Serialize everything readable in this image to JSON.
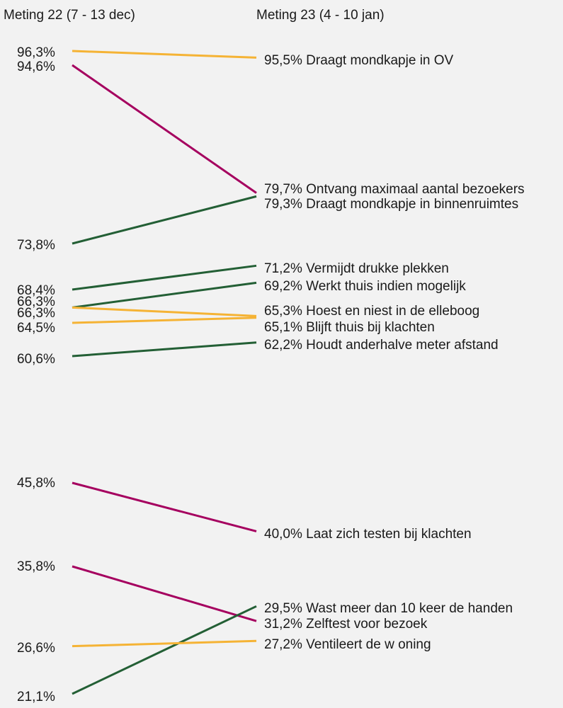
{
  "chart_data": {
    "type": "line",
    "chart_style": "slope",
    "x": [
      "Meting 22 (7 - 13 dec)",
      "Meting 23 (4 - 10 jan)"
    ],
    "series": [
      {
        "name": "Draagt mondkapje in OV",
        "values": [
          96.3,
          95.5
        ],
        "color": "#f5b335",
        "label_left": "96,3%",
        "label_right": "95,5% Draagt mondkapje in OV"
      },
      {
        "name": "Ontvang maximaal aantal bezoekers",
        "values": [
          94.6,
          79.7
        ],
        "color": "#a5005f",
        "label_left": "94,6%",
        "label_right": "79,7% Ontvang maximaal aantal bezoekers"
      },
      {
        "name": "Draagt mondkapje in binnenruimtes",
        "values": [
          73.8,
          79.3
        ],
        "color": "#235f35",
        "label_left": "73,8%",
        "label_right": "79,3% Draagt mondkapje in binnenruimtes"
      },
      {
        "name": "Vermijdt drukke plekken",
        "values": [
          68.4,
          71.2
        ],
        "color": "#235f35",
        "label_left": "68,4%",
        "label_right": "71,2% Vermijdt drukke plekken"
      },
      {
        "name": "Werkt thuis indien mogelijk",
        "values": [
          66.3,
          69.2
        ],
        "color": "#235f35",
        "label_left": "66,3%",
        "label_right": "69,2% Werkt thuis indien mogelijk"
      },
      {
        "name": "Hoest en niest in de elleboog",
        "values": [
          66.3,
          65.3
        ],
        "color": "#f5b335",
        "label_left": "66,3%",
        "label_right": "65,3% Hoest en niest in de elleboog"
      },
      {
        "name": "Blijft thuis bij klachten",
        "values": [
          64.5,
          65.1
        ],
        "color": "#f5b335",
        "label_left": "64,5%",
        "label_right": "65,1% Blijft thuis bij klachten"
      },
      {
        "name": "Houdt anderhalve meter afstand",
        "values": [
          60.6,
          62.2
        ],
        "color": "#235f35",
        "label_left": "60,6%",
        "label_right": "62,2% Houdt anderhalve meter afstand"
      },
      {
        "name": "Laat zich testen bij klachten",
        "values": [
          45.8,
          40.0
        ],
        "color": "#a5005f",
        "label_left": "45,8%",
        "label_right": "40,0% Laat zich testen bij klachten"
      },
      {
        "name": "Wast meer dan 10 keer de handen",
        "values": [
          35.8,
          29.5
        ],
        "color": "#a5005f",
        "label_left": "35,8%",
        "label_right": "29,5% Wast meer dan 10 keer de handen"
      },
      {
        "name": "Zelftest voor bezoek",
        "values": [
          21.1,
          31.2
        ],
        "color": "#235f35",
        "label_left": "21,1%",
        "label_right": "31,2% Zelftest voor bezoek"
      },
      {
        "name": "Ventileert de woning",
        "values": [
          26.6,
          27.2
        ],
        "color": "#f5b335",
        "label_left": "26,6%",
        "label_right": "27,2% Ventileert de w oning"
      }
    ]
  }
}
